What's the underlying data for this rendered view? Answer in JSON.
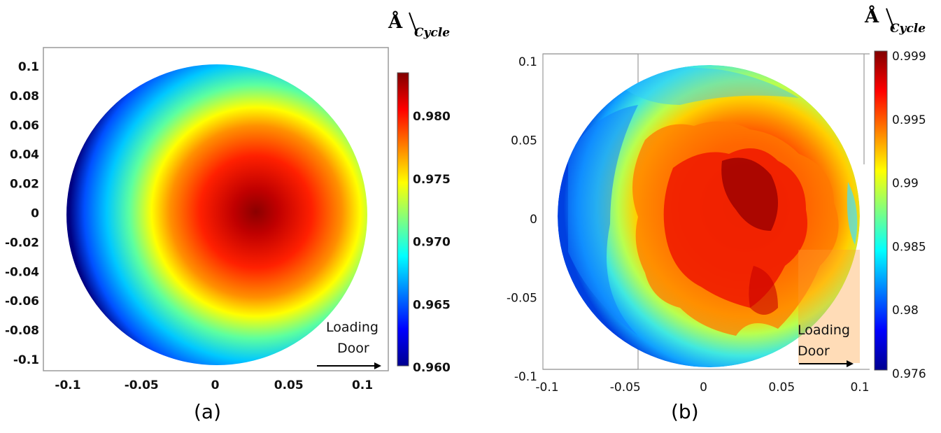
{
  "chart_data": [
    {
      "type": "heatmap",
      "label": "(a)",
      "unit": {
        "main": "Å",
        "sub": "Cycle"
      },
      "x_ticks": [
        "-0.1",
        "-0.05",
        "0",
        "0.05",
        "0.1"
      ],
      "y_ticks": [
        "0.1",
        "0.08",
        "0.06",
        "0.04",
        "0.02",
        "0",
        "-0.02",
        "-0.04",
        "-0.06",
        "-0.08",
        "-0.1"
      ],
      "colorbar_ticks": [
        "0.980",
        "0.975",
        "0.970",
        "0.965",
        "0.960"
      ],
      "clim": [
        0.96,
        0.9835
      ],
      "peak_center": [
        0.025,
        -0.005
      ],
      "annotation": [
        "Loading",
        "Door"
      ]
    },
    {
      "type": "heatmap",
      "label": "(b)",
      "unit": {
        "main": "Å",
        "sub": "Cycle"
      },
      "x_ticks": [
        "-0.1",
        "-0.05",
        "0",
        "0.05",
        "0.1"
      ],
      "y_ticks": [
        "0.1",
        "0.05",
        "0",
        "-0.05",
        "-0.1"
      ],
      "colorbar_ticks": [
        "0.999",
        "0.995",
        "0.99",
        "0.985",
        "0.98",
        "0.976"
      ],
      "clim": [
        0.976,
        0.999
      ],
      "peak_center": [
        0.03,
        0.01
      ],
      "annotation": [
        "Loading",
        "Door"
      ]
    }
  ]
}
